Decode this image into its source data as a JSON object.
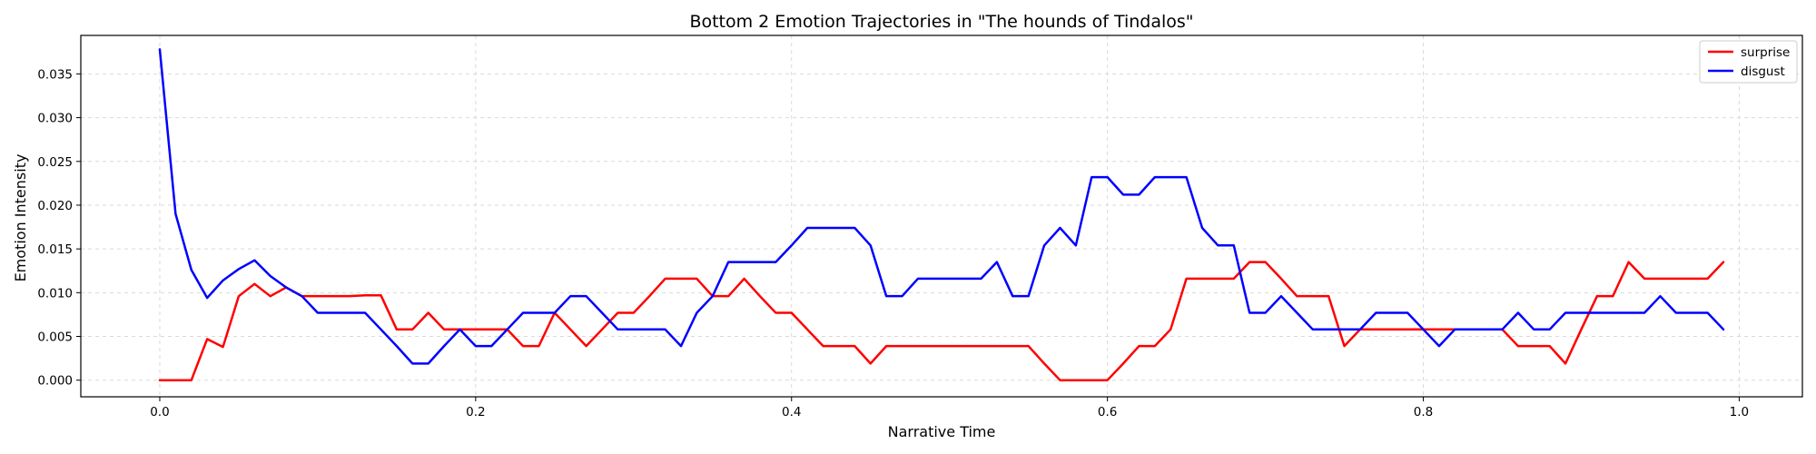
{
  "chart_data": {
    "type": "line",
    "title": "Bottom 2 Emotion Trajectories in \"The hounds of Tindalos\"",
    "xlabel": "Narrative Time",
    "ylabel": "Emotion Intensity",
    "xlim": [
      -0.05,
      1.04
    ],
    "ylim": [
      -0.0019,
      0.0394
    ],
    "xticks": [
      0.0,
      0.2,
      0.4,
      0.6,
      0.8,
      1.0
    ],
    "xtick_labels": [
      "0.0",
      "0.2",
      "0.4",
      "0.6",
      "0.8",
      "1.0"
    ],
    "yticks": [
      0.0,
      0.005,
      0.01,
      0.015,
      0.02,
      0.025,
      0.03,
      0.035
    ],
    "ytick_labels": [
      "0.000",
      "0.005",
      "0.010",
      "0.015",
      "0.020",
      "0.025",
      "0.030",
      "0.035"
    ],
    "grid": true,
    "legend_position": "top-right",
    "x": [
      0.0,
      0.01,
      0.02,
      0.03,
      0.04,
      0.05,
      0.06,
      0.07,
      0.08,
      0.09,
      0.1,
      0.11,
      0.12,
      0.13,
      0.14,
      0.15,
      0.16,
      0.17,
      0.18,
      0.19,
      0.2,
      0.21,
      0.22,
      0.23,
      0.24,
      0.25,
      0.26,
      0.27,
      0.28,
      0.29,
      0.3,
      0.31,
      0.32,
      0.33,
      0.34,
      0.35,
      0.36,
      0.37,
      0.38,
      0.39,
      0.4,
      0.41,
      0.42,
      0.43,
      0.44,
      0.45,
      0.46,
      0.47,
      0.48,
      0.49,
      0.5,
      0.51,
      0.52,
      0.53,
      0.54,
      0.55,
      0.56,
      0.57,
      0.58,
      0.59,
      0.6,
      0.61,
      0.62,
      0.63,
      0.64,
      0.65,
      0.66,
      0.67,
      0.68,
      0.69,
      0.7,
      0.71,
      0.72,
      0.73,
      0.74,
      0.75,
      0.76,
      0.77,
      0.78,
      0.79,
      0.8,
      0.81,
      0.82,
      0.83,
      0.84,
      0.85,
      0.86,
      0.87,
      0.88,
      0.89,
      0.9,
      0.91,
      0.92,
      0.93,
      0.94,
      0.95,
      0.96,
      0.97,
      0.98,
      0.99
    ],
    "series": [
      {
        "name": "surprise",
        "color": "#ff0000",
        "values": [
          0.0,
          0.0,
          0.0,
          0.0047,
          0.0038,
          0.0096,
          0.011,
          0.0096,
          0.0106,
          0.0096,
          0.0096,
          0.0096,
          0.0096,
          0.0097,
          0.0097,
          0.0058,
          0.0058,
          0.0077,
          0.0058,
          0.0058,
          0.0058,
          0.0058,
          0.0058,
          0.0039,
          0.0039,
          0.0077,
          0.0058,
          0.0039,
          0.0058,
          0.0077,
          0.0077,
          0.0096,
          0.0116,
          0.0116,
          0.0116,
          0.0096,
          0.0096,
          0.0116,
          0.0096,
          0.0077,
          0.0077,
          0.0058,
          0.0039,
          0.0039,
          0.0039,
          0.0019,
          0.0039,
          0.0039,
          0.0039,
          0.0039,
          0.0039,
          0.0039,
          0.0039,
          0.0039,
          0.0039,
          0.0039,
          0.0019,
          0.0,
          0.0,
          0.0,
          0.0,
          0.0019,
          0.0039,
          0.0039,
          0.0058,
          0.0116,
          0.0116,
          0.0116,
          0.0116,
          0.0135,
          0.0135,
          0.0116,
          0.0096,
          0.0096,
          0.0096,
          0.0039,
          0.0058,
          0.0058,
          0.0058,
          0.0058,
          0.0058,
          0.0058,
          0.0058,
          0.0058,
          0.0058,
          0.0058,
          0.0039,
          0.0039,
          0.0039,
          0.0019,
          0.0058,
          0.0096,
          0.0096,
          0.0135,
          0.0116,
          0.0116,
          0.0116,
          0.0116,
          0.0116,
          0.0135
        ]
      },
      {
        "name": "disgust",
        "color": "#0000ff",
        "values": [
          0.0378,
          0.019,
          0.0126,
          0.0094,
          0.0114,
          0.0127,
          0.0137,
          0.0119,
          0.0106,
          0.0096,
          0.0077,
          0.0077,
          0.0077,
          0.0077,
          0.0058,
          0.0039,
          0.0019,
          0.0019,
          0.0039,
          0.0058,
          0.0039,
          0.0039,
          0.0058,
          0.0077,
          0.0077,
          0.0077,
          0.0096,
          0.0096,
          0.0077,
          0.0058,
          0.0058,
          0.0058,
          0.0058,
          0.0039,
          0.0077,
          0.0096,
          0.0135,
          0.0135,
          0.0135,
          0.0135,
          0.0154,
          0.0174,
          0.0174,
          0.0174,
          0.0174,
          0.0154,
          0.0096,
          0.0096,
          0.0116,
          0.0116,
          0.0116,
          0.0116,
          0.0116,
          0.0135,
          0.0096,
          0.0096,
          0.0154,
          0.0174,
          0.0154,
          0.0232,
          0.0232,
          0.0212,
          0.0212,
          0.0232,
          0.0232,
          0.0232,
          0.0174,
          0.0154,
          0.0154,
          0.0077,
          0.0077,
          0.0096,
          0.0077,
          0.0058,
          0.0058,
          0.0058,
          0.0058,
          0.0077,
          0.0077,
          0.0077,
          0.0058,
          0.0039,
          0.0058,
          0.0058,
          0.0058,
          0.0058,
          0.0077,
          0.0058,
          0.0058,
          0.0077,
          0.0077,
          0.0077,
          0.0077,
          0.0077,
          0.0077,
          0.0096,
          0.0077,
          0.0077,
          0.0077,
          0.0058
        ]
      }
    ]
  }
}
